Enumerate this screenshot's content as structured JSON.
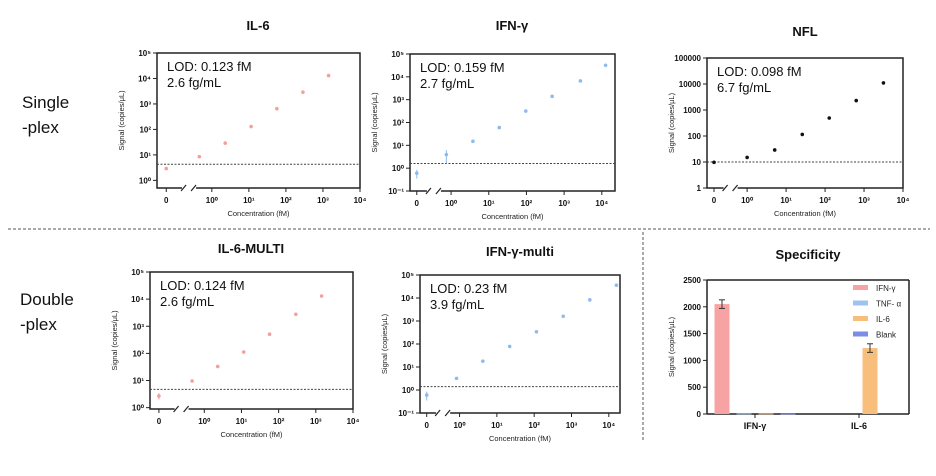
{
  "row_labels": {
    "single": [
      "Single",
      "-plex"
    ],
    "double": [
      "Double",
      "-plex"
    ]
  },
  "chart_data": [
    {
      "type": "scatter",
      "title": "IL-6",
      "xscale": "log",
      "yscale": "log",
      "xlabel": "Concentration (fM)",
      "ylabel": "Signal (copies/μL)",
      "xtick_values": [
        0,
        1,
        10,
        100,
        1000,
        10000
      ],
      "xtick_labels": [
        "0",
        "10⁰",
        "10¹",
        "10²",
        "10³",
        "10⁴"
      ],
      "ytick_values": [
        1,
        10,
        100,
        1000,
        10000,
        100000
      ],
      "ytick_labels": [
        "10⁰",
        "10¹",
        "10²",
        "10³",
        "10⁴",
        "10⁵"
      ],
      "annotation": [
        "LOD: 0.123 fM",
        "2.6 fg/mL"
      ],
      "lod_line": 4.3,
      "color": "#f4a09a",
      "x": [
        0,
        0.46,
        2.3,
        11.5,
        57,
        288,
        1420
      ],
      "y": [
        2.9,
        8.5,
        29,
        130,
        650,
        2900,
        13000
      ],
      "err": [
        0.4,
        0,
        3,
        0,
        0,
        0,
        0
      ]
    },
    {
      "type": "scatter",
      "title": "IFN-γ",
      "xscale": "log",
      "yscale": "log",
      "xlabel": "Concentration (fM)",
      "ylabel": "Signal (copies/μL)",
      "xtick_values": [
        0,
        1,
        10,
        100,
        1000,
        10000
      ],
      "xtick_labels": [
        "0",
        "10⁰",
        "10¹",
        "10²",
        "10³",
        "10⁴"
      ],
      "ytick_values": [
        0.1,
        1,
        10,
        100,
        1000,
        10000,
        100000
      ],
      "ytick_labels": [
        "10⁻¹",
        "10⁰",
        "10¹",
        "10²",
        "10³",
        "10⁴",
        "10⁵"
      ],
      "annotation": [
        "LOD: 0.159 fM",
        "2.7 fg/mL"
      ],
      "lod_line": 1.6,
      "color": "#8fbbeb",
      "x": [
        0,
        0.75,
        3.8,
        19,
        96,
        480,
        2700,
        12600
      ],
      "y": [
        0.6,
        3.9,
        15,
        60,
        316,
        1400,
        6600,
        32000
      ],
      "err": [
        0.25,
        2.3,
        1.5,
        0,
        0,
        0,
        0,
        0
      ]
    },
    {
      "type": "scatter",
      "title": "NFL",
      "xscale": "log",
      "yscale": "log",
      "xlabel": "Concentration (fM)",
      "ylabel": "Signal (copies/μL)",
      "xtick_values": [
        0,
        1,
        10,
        100,
        1000,
        10000
      ],
      "xtick_labels": [
        "0",
        "10⁰",
        "10¹",
        "10²",
        "10³",
        "10⁴"
      ],
      "ytick_values": [
        1,
        10,
        100,
        1000,
        10000,
        100000
      ],
      "ytick_labels": [
        "1",
        "10",
        "100",
        "1000",
        "10000",
        "100000"
      ],
      "annotation": [
        "LOD: 0.098 fM",
        "6.7 fg/mL"
      ],
      "lod_line": 10,
      "color": "#111111",
      "x": [
        0,
        1,
        5.1,
        26,
        128,
        630,
        3150
      ],
      "y": [
        9.7,
        15,
        29,
        115,
        490,
        2300,
        11000
      ],
      "err": [
        0,
        0,
        0,
        0,
        0,
        0,
        0
      ]
    },
    {
      "type": "scatter",
      "title": "IL-6-MULTI",
      "xscale": "log",
      "yscale": "log",
      "xlabel": "Concentration (fM)",
      "ylabel": "Signal (copies/μL)",
      "xtick_values": [
        0,
        1,
        10,
        100,
        1000,
        10000
      ],
      "xtick_labels": [
        "0",
        "10⁰",
        "10¹",
        "10²",
        "10³",
        "10⁴"
      ],
      "ytick_values": [
        1,
        10,
        100,
        1000,
        10000,
        100000
      ],
      "ytick_labels": [
        "10⁰",
        "10¹",
        "10²",
        "10³",
        "10⁴",
        "10⁵"
      ],
      "annotation": [
        "LOD: 0.124 fM",
        "2.6 fg/mL"
      ],
      "lod_line": 4.7,
      "color": "#f4a09a",
      "x": [
        0,
        0.47,
        2.3,
        11.5,
        57,
        290,
        1430
      ],
      "y": [
        2.7,
        9.6,
        33,
        112,
        510,
        2760,
        13000
      ],
      "err": [
        0.7,
        0,
        0,
        0,
        0,
        0,
        0
      ]
    },
    {
      "type": "scatter",
      "title": "IFN-γ-multi",
      "xscale": "log",
      "yscale": "log",
      "xlabel": "Concentration (fM)",
      "ylabel": "Signal (copies/μL)",
      "xtick_values": [
        0,
        1,
        10,
        100,
        1000,
        10000
      ],
      "xtick_labels": [
        "0",
        "10⁰",
        "10¹",
        "10²",
        "10³",
        "10⁴"
      ],
      "ytick_values": [
        0.1,
        1,
        10,
        100,
        1000,
        10000,
        100000
      ],
      "ytick_labels": [
        "10⁻¹",
        "10⁰",
        "10¹",
        "10²",
        "10³",
        "10⁴",
        "10⁵"
      ],
      "annotation": [
        "LOD: 0.23 fM",
        "3.9 fg/mL"
      ],
      "lod_line": 1.4,
      "color": "#8fbbeb",
      "x": [
        0,
        0.83,
        4.2,
        22,
        115,
        600,
        3100,
        16000
      ],
      "y": [
        0.6,
        3.2,
        18,
        78,
        340,
        1600,
        8300,
        36000
      ],
      "err": [
        0.25,
        0,
        2.5,
        0,
        0,
        0,
        0,
        0
      ]
    },
    {
      "type": "bar",
      "title": "Specificity",
      "xlabel": "",
      "ylabel": "Signal (copies/μL)",
      "categories": [
        "IFN-γ",
        "IL-6"
      ],
      "ylim": [
        0,
        2500
      ],
      "ytick_values": [
        0,
        500,
        1000,
        1500,
        2000,
        2500
      ],
      "ytick_labels": [
        "0",
        "500",
        "1000",
        "1500",
        "2000",
        "2500"
      ],
      "legend_position": "top-right",
      "series": [
        {
          "name": "IFN-γ",
          "color": "#f8a3a3",
          "values": [
            2050,
            0
          ],
          "err": [
            80,
            0
          ]
        },
        {
          "name": "TNF- α",
          "color": "#9dc3ef",
          "values": [
            8,
            0
          ],
          "err": [
            0,
            0
          ]
        },
        {
          "name": "IL-6",
          "color": "#f8be7c",
          "values": [
            8,
            1230
          ],
          "err": [
            0,
            80
          ]
        },
        {
          "name": "Blank",
          "color": "#7d8de6",
          "values": [
            6,
            0
          ],
          "err": [
            0,
            0
          ]
        }
      ]
    }
  ]
}
